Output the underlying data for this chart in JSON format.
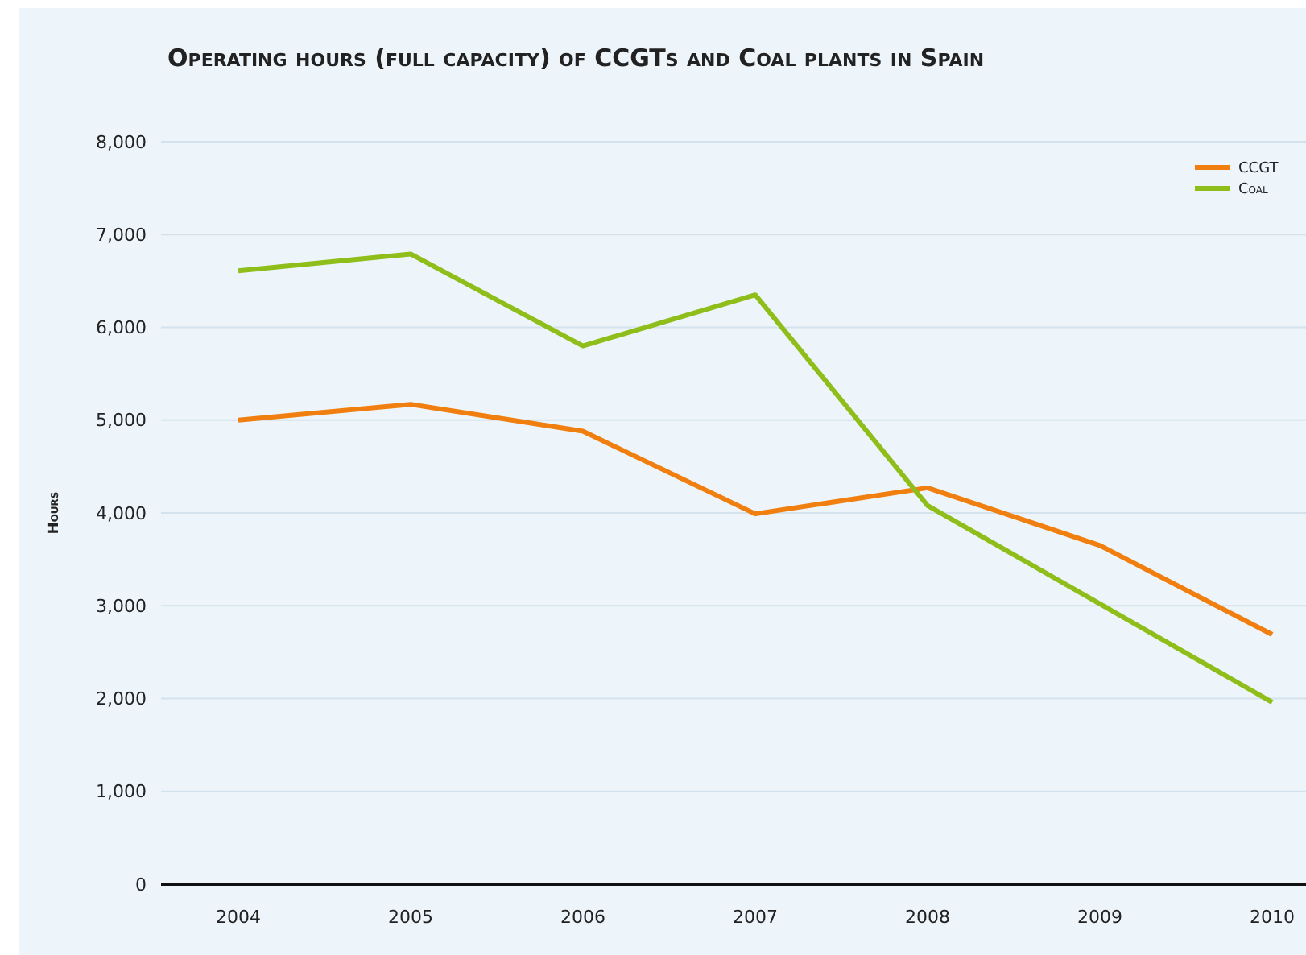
{
  "chart_data": {
    "type": "line",
    "title": "Operating hours (full capacity) of CCGTs and Coal plants in Spain",
    "ylabel": "Hours",
    "categories": [
      "2004",
      "2005",
      "2006",
      "2007",
      "2008",
      "2009",
      "2010"
    ],
    "series": [
      {
        "name": "CCGT",
        "color": "#f07f0f",
        "values": [
          5000,
          5170,
          4880,
          3990,
          4270,
          3650,
          2690
        ]
      },
      {
        "name": "Coal",
        "color": "#8fbe1a",
        "values": [
          6610,
          6790,
          5800,
          6350,
          4080,
          3020,
          1960
        ]
      }
    ],
    "ylim": [
      0,
      8000
    ],
    "yticks": [
      {
        "value": 0,
        "label": "0"
      },
      {
        "value": 1000,
        "label": "1,000"
      },
      {
        "value": 2000,
        "label": "2,000"
      },
      {
        "value": 3000,
        "label": "3,000"
      },
      {
        "value": 4000,
        "label": "4,000"
      },
      {
        "value": 5000,
        "label": "5,000"
      },
      {
        "value": 6000,
        "label": "6,000"
      },
      {
        "value": 7000,
        "label": "7,000"
      },
      {
        "value": 8000,
        "label": "8,000"
      }
    ],
    "grid": "y",
    "legend": "top right",
    "line_style": "solid",
    "marker": "none"
  }
}
